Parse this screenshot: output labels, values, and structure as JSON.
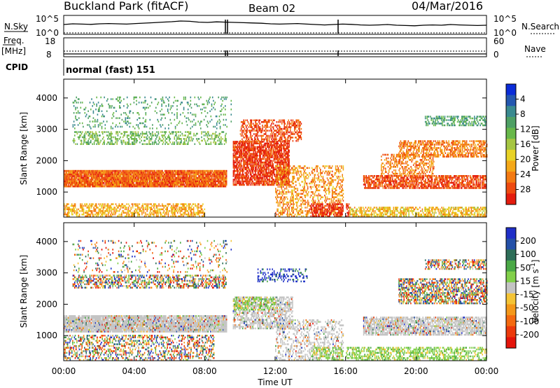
{
  "header": {
    "title": "Buckland Park (fitACF)",
    "beam": "Beam 02",
    "date": "04/Mar/2016",
    "mode": "normal (fast) 151"
  },
  "chart_data": [
    {
      "type": "line",
      "name": "noise-panel",
      "left_label": "N.Sky",
      "right_label": "N.Search",
      "left_ticks": [
        "10^5",
        "10^0"
      ],
      "right_ticks": [
        "10^5",
        "10^0"
      ],
      "trace_level": [
        0.55,
        0.6,
        0.58,
        0.56,
        0.6,
        0.62,
        0.6,
        0.58,
        0.62,
        0.65,
        0.68,
        0.72,
        0.75,
        0.8,
        0.78,
        0.72,
        0.7,
        0.74,
        0.72,
        0.7,
        0.68,
        0.66,
        0.64,
        0.6,
        0.58,
        0.6,
        0.62,
        0.58,
        0.55,
        0.52,
        0.55,
        0.58,
        0.56,
        0.52,
        0.5,
        0.52,
        0.55,
        0.5,
        0.48,
        0.46,
        0.5,
        0.52,
        0.5,
        0.55,
        0.52,
        0.5,
        0.48,
        0.5
      ]
    },
    {
      "type": "line",
      "name": "frequency-panel",
      "left_label": "Freq.",
      "left_unit": "[MHz]",
      "right_label": "Nave",
      "left_ticks": [
        "18",
        "8"
      ],
      "right_ticks": [
        "60",
        "0"
      ],
      "cpid_label": "CPID"
    },
    {
      "type": "heatmap",
      "name": "power-panel",
      "ylabel": "Slant Range [km]",
      "yticks": [
        1000,
        2000,
        3000,
        4000
      ],
      "ylim": [
        200,
        4600
      ],
      "colorbar_label": "Power [dB]",
      "colorbar_ticks": [
        4,
        8,
        12,
        16,
        20,
        24,
        28
      ],
      "colorbar_colors": [
        "#0a2cd8",
        "#2457b0",
        "#3a8a90",
        "#4ea065",
        "#68b84a",
        "#a6c642",
        "#e8d226",
        "#f4a818",
        "#f47a12",
        "#ee4a10",
        "#e41c0e"
      ]
    },
    {
      "type": "heatmap",
      "name": "velocity-panel",
      "ylabel": "Slant Range [km]",
      "yticks": [
        1000,
        2000,
        3000,
        4000
      ],
      "ylim": [
        200,
        4600
      ],
      "xticks": [
        "00:00",
        "04:00",
        "08:00",
        "12:00",
        "16:00",
        "20:00",
        "00:00"
      ],
      "xlabel": "Time UT",
      "colorbar_label": "Velocity [m s",
      "colorbar_exponent": "-1",
      "colorbar_ticks": [
        200,
        100,
        50,
        15,
        -15,
        -50,
        -100,
        -200
      ],
      "colorbar_colors": [
        "#1f2fc8",
        "#2450a8",
        "#2e6e58",
        "#4aa846",
        "#82d04a",
        "#c4c4c4",
        "#f4c436",
        "#f4981a",
        "#f46a10",
        "#ec3a0c",
        "#e4140a"
      ]
    }
  ]
}
